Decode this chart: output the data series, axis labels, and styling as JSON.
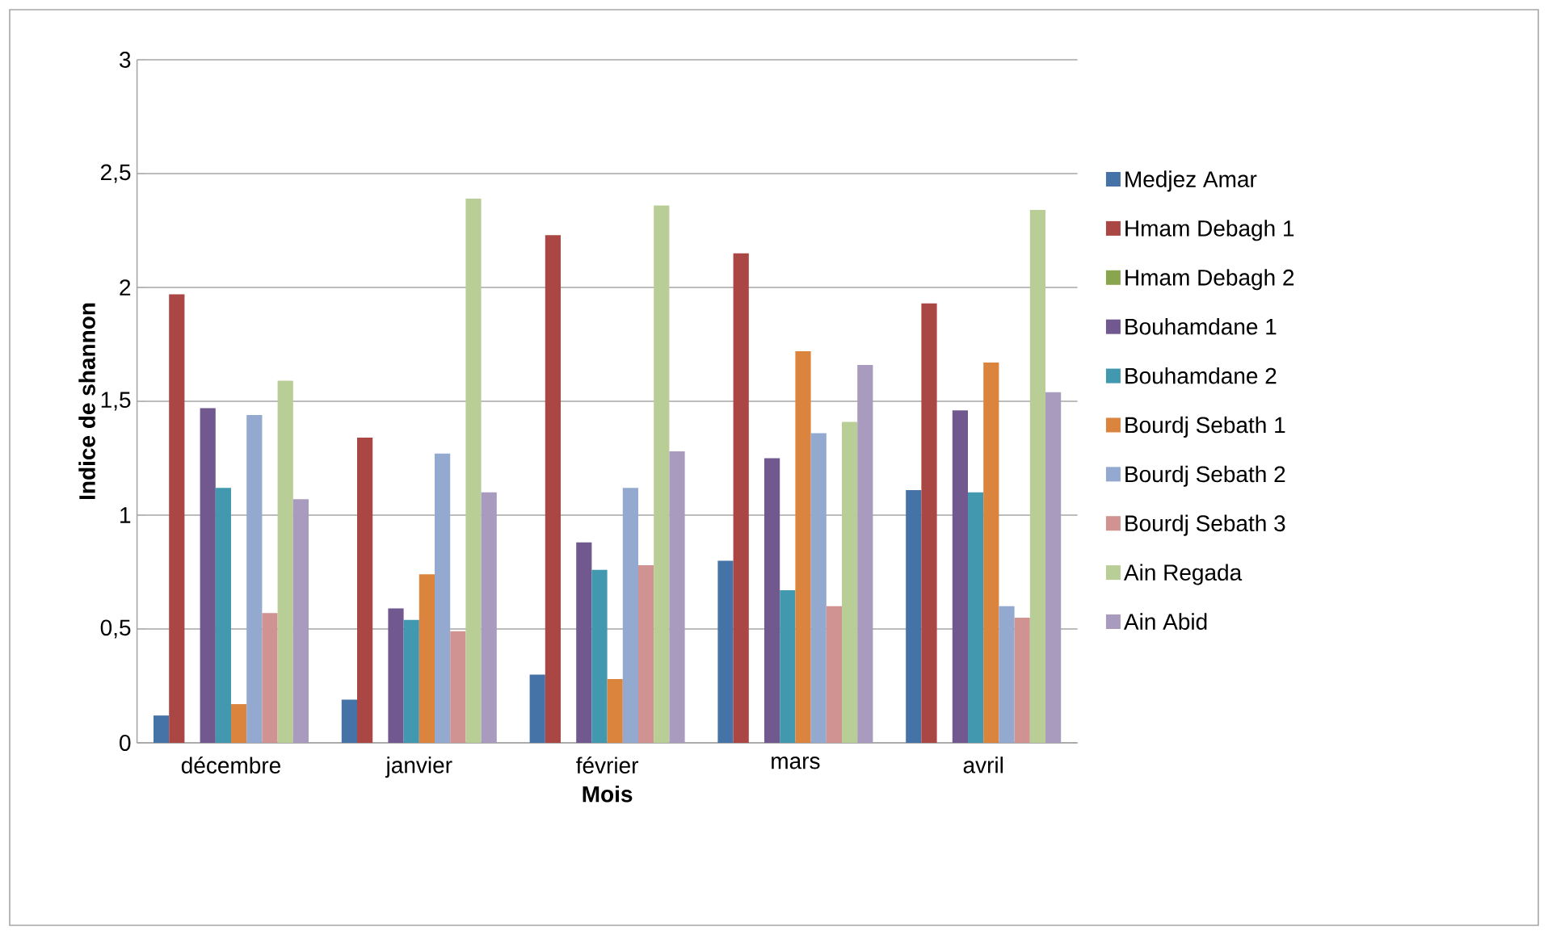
{
  "chart_data": {
    "type": "bar",
    "xlabel": "Mois",
    "ylabel": "Indice de shannon",
    "categories": [
      "décembre",
      "janvier",
      "février",
      "mars",
      "avril"
    ],
    "series": [
      {
        "name": "Medjez Amar",
        "color": "#4572a7",
        "values": [
          0.12,
          0.19,
          0.3,
          0.8,
          1.11
        ]
      },
      {
        "name": "Hmam Debagh 1",
        "color": "#aa4643",
        "values": [
          1.97,
          1.34,
          2.23,
          2.15,
          1.93
        ]
      },
      {
        "name": "Hmam Debagh 2",
        "color": "#89a54e",
        "values": [
          0,
          0,
          0,
          0,
          0
        ]
      },
      {
        "name": "Bouhamdane 1",
        "color": "#71588f",
        "values": [
          1.47,
          0.59,
          0.88,
          1.25,
          1.46
        ]
      },
      {
        "name": "Bouhamdane 2",
        "color": "#4198af",
        "values": [
          1.12,
          0.54,
          0.76,
          0.67,
          1.1
        ]
      },
      {
        "name": "Bourdj Sebath 1",
        "color": "#db843d",
        "values": [
          0.17,
          0.74,
          0.28,
          1.72,
          1.67
        ]
      },
      {
        "name": "Bourdj Sebath 2",
        "color": "#93a9cf",
        "values": [
          1.44,
          1.27,
          1.12,
          1.36,
          0.6
        ]
      },
      {
        "name": "Bourdj Sebath 3",
        "color": "#d19392",
        "values": [
          0.57,
          0.49,
          0.78,
          0.6,
          0.55
        ]
      },
      {
        "name": "Ain Regada",
        "color": "#b9cd96",
        "values": [
          1.59,
          2.39,
          2.36,
          1.41,
          2.34
        ]
      },
      {
        "name": "Ain Abid",
        "color": "#a99bbd",
        "values": [
          1.07,
          1.1,
          1.28,
          1.66,
          1.54
        ]
      }
    ],
    "ylim": [
      0,
      3
    ],
    "yticks": [
      0,
      {
        "value": 0.5,
        "label": "0,5"
      },
      1,
      {
        "value": 1.5,
        "label": "1,5"
      },
      2,
      {
        "value": 2.5,
        "label": "2,5"
      },
      3
    ],
    "grid": "y",
    "legend": "right"
  }
}
